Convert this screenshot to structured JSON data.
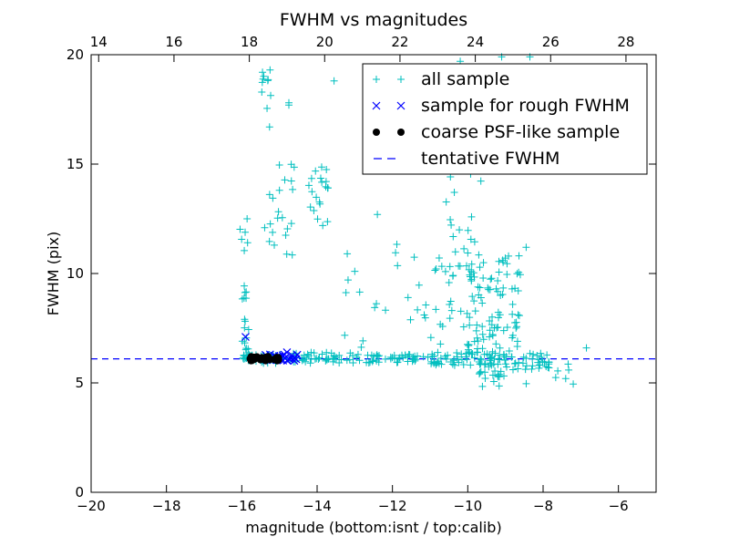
{
  "chart_data": {
    "type": "scatter",
    "title": "FWHM vs magnitudes",
    "xlabel": "magnitude (bottom:isnt / top:calib)",
    "ylabel": "FWHM (pix)",
    "xlim": [
      -20,
      -5
    ],
    "ylim": [
      0,
      20
    ],
    "xticks": [
      -20,
      -18,
      -16,
      -14,
      -12,
      -10,
      -8,
      -6
    ],
    "xtick_labels": [
      "−20",
      "−18",
      "−16",
      "−14",
      "−12",
      "−10",
      "−8",
      "−6"
    ],
    "yticks": [
      0,
      5,
      10,
      15,
      20
    ],
    "ytick_labels": [
      "0",
      "5",
      "10",
      "15",
      "20"
    ],
    "top_axis": {
      "offset": 33.8,
      "ticks": [
        14,
        16,
        18,
        20,
        22,
        24,
        26,
        28
      ],
      "tick_labels": [
        "14",
        "16",
        "18",
        "20",
        "22",
        "24",
        "26",
        "28"
      ]
    },
    "legend_position": "upper-right",
    "colors": {
      "all_sample": "#00bfbf",
      "rough": "#0000ff",
      "coarse": "#000000",
      "tentative": "#0000ff"
    },
    "tentative_fwhm": 6.1,
    "series": [
      {
        "name": "all sample",
        "marker": "plus",
        "color": "#00bfbf",
        "clusters": [
          {
            "x": [
              -16.0,
              -15.7
            ],
            "y": [
              6.0,
              6.3
            ],
            "n": 25
          },
          {
            "x": [
              -15.7,
              -14.8
            ],
            "y": [
              5.9,
              6.3
            ],
            "n": 40
          },
          {
            "x": [
              -14.8,
              -13.0
            ],
            "y": [
              5.9,
              6.4
            ],
            "n": 45
          },
          {
            "x": [
              -13.0,
              -11.0
            ],
            "y": [
              5.9,
              6.3
            ],
            "n": 45
          },
          {
            "x": [
              -11.0,
              -9.0
            ],
            "y": [
              5.8,
              6.4
            ],
            "n": 60
          },
          {
            "x": [
              -9.0,
              -7.8
            ],
            "y": [
              5.6,
              6.3
            ],
            "n": 30
          },
          {
            "x": [
              -16.0,
              -15.8
            ],
            "y": [
              6.5,
              9.5
            ],
            "n": 16
          },
          {
            "x": [
              -16.1,
              -15.8
            ],
            "y": [
              11.0,
              12.8
            ],
            "n": 6
          },
          {
            "x": [
              -15.5,
              -15.2
            ],
            "y": [
              16.3,
              19.3
            ],
            "n": 9
          },
          {
            "x": [
              -15.4,
              -14.6
            ],
            "y": [
              10.8,
              15.0
            ],
            "n": 22
          },
          {
            "x": [
              -14.3,
              -13.7
            ],
            "y": [
              12.0,
              15.0
            ],
            "n": 20
          },
          {
            "x": [
              -13.5,
              -10.5
            ],
            "y": [
              6.5,
              11.5
            ],
            "n": 30
          },
          {
            "x": [
              -10.5,
              -9.5
            ],
            "y": [
              6.5,
              13.0
            ],
            "n": 35
          },
          {
            "x": [
              -10.0,
              -8.6
            ],
            "y": [
              6.2,
              11.0
            ],
            "n": 90
          },
          {
            "x": [
              -9.7,
              -8.9
            ],
            "y": [
              4.8,
              5.9
            ],
            "n": 20
          },
          {
            "x": [
              -11.5,
              -9.5
            ],
            "y": [
              13.0,
              16.5
            ],
            "n": 12
          },
          {
            "x": [
              -10.5,
              -9.5
            ],
            "y": [
              16.0,
              19.8
            ],
            "n": 8
          },
          {
            "x": [
              -8.6,
              -7.2
            ],
            "y": [
              4.8,
              6.6
            ],
            "n": 10
          }
        ],
        "points": [
          {
            "x": -15.45,
            "y": 19.2
          },
          {
            "x": -15.25,
            "y": 19.3
          },
          {
            "x": -14.75,
            "y": 17.8
          },
          {
            "x": -14.75,
            "y": 17.7
          },
          {
            "x": -13.55,
            "y": 18.8
          },
          {
            "x": -9.1,
            "y": 19.9
          },
          {
            "x": -10.2,
            "y": 19.7
          },
          {
            "x": -8.35,
            "y": 19.9
          },
          {
            "x": -8.45,
            "y": 11.2
          },
          {
            "x": -6.85,
            "y": 6.6
          },
          {
            "x": -7.2,
            "y": 4.95
          },
          {
            "x": -7.4,
            "y": 5.2
          },
          {
            "x": -12.4,
            "y": 12.7
          },
          {
            "x": -13.2,
            "y": 10.9
          },
          {
            "x": -13.0,
            "y": 10.1
          }
        ]
      },
      {
        "name": "sample for rough FWHM",
        "marker": "x",
        "color": "#0000ff",
        "clusters": [
          {
            "x": [
              -15.4,
              -14.5
            ],
            "y": [
              6.0,
              6.3
            ],
            "n": 30
          }
        ],
        "points": [
          {
            "x": -15.9,
            "y": 7.1
          },
          {
            "x": -15.25,
            "y": 6.3
          },
          {
            "x": -14.8,
            "y": 6.4
          }
        ]
      },
      {
        "name": "coarse PSF-like sample",
        "marker": "circle",
        "color": "#000000",
        "clusters": [
          {
            "x": [
              -15.8,
              -15.0
            ],
            "y": [
              6.0,
              6.2
            ],
            "n": 26
          }
        ],
        "points": [
          {
            "x": -15.75,
            "y": 6.2
          },
          {
            "x": -15.3,
            "y": 6.2
          }
        ]
      }
    ],
    "legend": [
      {
        "label": "all sample",
        "marker": "plus",
        "color": "#00bfbf"
      },
      {
        "label": "sample for rough FWHM",
        "marker": "x",
        "color": "#0000ff"
      },
      {
        "label": "coarse PSF-like sample",
        "marker": "circle",
        "color": "#000000"
      },
      {
        "label": "tentative FWHM",
        "marker": "dash",
        "color": "#0000ff"
      }
    ]
  }
}
